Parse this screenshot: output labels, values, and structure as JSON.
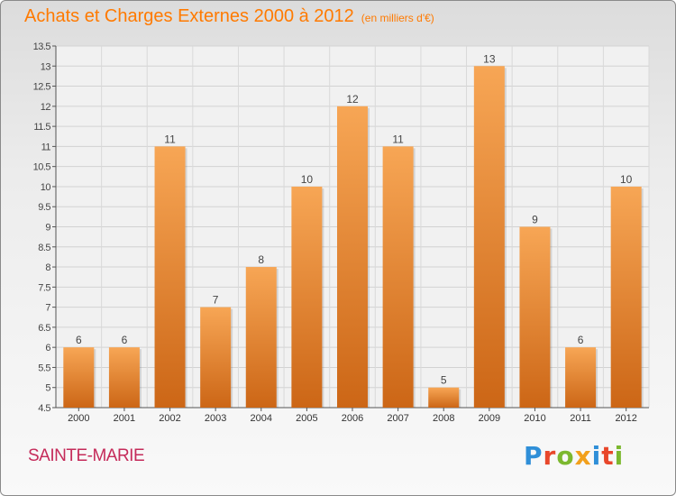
{
  "header": {
    "title": "Achats et Charges Externes 2000 à 2012",
    "subtitle": "(en milliers d'€)"
  },
  "footer": {
    "commune": "SAINTE-MARIE",
    "logo_letters": [
      "P",
      "r",
      "o",
      "x",
      "i",
      "t",
      "i"
    ],
    "logo_colors": [
      "#2f8fd8",
      "#e8472b",
      "#7cb82f",
      "#f2a01c",
      "#2f8fd8",
      "#e8472b",
      "#7cb82f"
    ]
  },
  "chart_data": {
    "type": "bar",
    "title": "Achats et Charges Externes 2000 à 2012",
    "subtitle": "(en milliers d'€)",
    "xlabel": "",
    "ylabel": "",
    "categories": [
      "2000",
      "2001",
      "2002",
      "2003",
      "2004",
      "2005",
      "2006",
      "2007",
      "2008",
      "2009",
      "2010",
      "2011",
      "2012"
    ],
    "values": [
      6,
      6,
      11,
      7,
      8,
      10,
      12,
      11,
      5,
      13,
      9,
      6,
      10
    ],
    "data_labels": [
      "6",
      "6",
      "11",
      "7",
      "8",
      "10",
      "12",
      "11",
      "5",
      "13",
      "9",
      "6",
      "10"
    ],
    "ylim": [
      4.5,
      13.5
    ],
    "yticks": [
      4.5,
      5,
      5.5,
      6,
      6.5,
      7,
      7.5,
      8,
      8.5,
      9,
      9.5,
      10,
      10.5,
      11,
      11.5,
      12,
      12.5,
      13,
      13.5
    ],
    "ytick_labels": [
      "4.5",
      "5",
      "5.5",
      "6",
      "6.5",
      "7",
      "7.5",
      "8",
      "8.5",
      "9",
      "9.5",
      "10",
      "10.5",
      "11",
      "11.5",
      "12",
      "12.5",
      "13",
      "13.5"
    ],
    "grid": true,
    "bar_color": "#f08a24"
  }
}
